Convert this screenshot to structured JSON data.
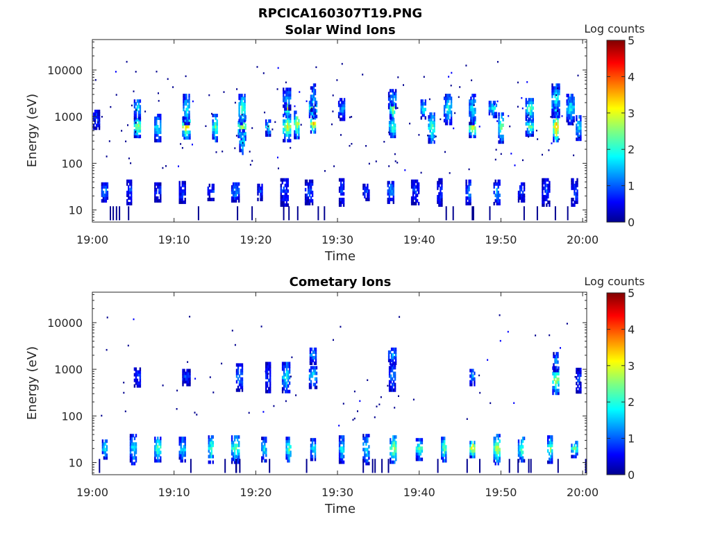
{
  "figure": {
    "title": "RPCICA160307T19.PNG"
  },
  "chart_data": [
    {
      "type": "heatmap",
      "title": "Solar Wind Ions",
      "xlabel": "Time",
      "ylabel": "Energy (eV)",
      "yscale": "log",
      "ylim": [
        5.5,
        45000
      ],
      "xlim": [
        "19:00",
        "20:00"
      ],
      "xticks": [
        "19:00",
        "19:10",
        "19:20",
        "19:30",
        "19:40",
        "19:50",
        "20:00"
      ],
      "yticks": [
        "10",
        "100",
        "1000",
        "10000"
      ],
      "colorbar": {
        "label": "Log counts",
        "min": 0,
        "max": 5,
        "ticks": [
          "0",
          "1",
          "2",
          "3",
          "4",
          "5"
        ],
        "colormap": "jet"
      },
      "bursts": [
        {
          "t": 0.5,
          "e": 900,
          "v": 1.0
        },
        {
          "t": 5.5,
          "e": 600,
          "v": 3.0
        },
        {
          "t": 5.5,
          "e": 1500,
          "v": 2.0
        },
        {
          "t": 8.0,
          "e": 600,
          "v": 2.0
        },
        {
          "t": 11.5,
          "e": 600,
          "v": 3.5
        },
        {
          "t": 11.5,
          "e": 1500,
          "v": 2.0
        },
        {
          "t": 15.0,
          "e": 600,
          "v": 2.5
        },
        {
          "t": 18.3,
          "e": 600,
          "v": 3.0
        },
        {
          "t": 18.3,
          "e": 1500,
          "v": 2.5
        },
        {
          "t": 18.3,
          "e": 300,
          "v": 2.0
        },
        {
          "t": 21.5,
          "e": 600,
          "v": 2.0
        },
        {
          "t": 23.8,
          "e": 600,
          "v": 3.0
        },
        {
          "t": 23.8,
          "e": 1500,
          "v": 3.0
        },
        {
          "t": 23.8,
          "e": 2500,
          "v": 1.5
        },
        {
          "t": 25.0,
          "e": 700,
          "v": 3.0
        },
        {
          "t": 27.0,
          "e": 700,
          "v": 3.5
        },
        {
          "t": 27.0,
          "e": 1500,
          "v": 3.0
        },
        {
          "t": 27.0,
          "e": 2500,
          "v": 1.5
        },
        {
          "t": 30.5,
          "e": 1500,
          "v": 1.5
        },
        {
          "t": 36.7,
          "e": 600,
          "v": 2.5
        },
        {
          "t": 36.7,
          "e": 1500,
          "v": 3.0
        },
        {
          "t": 36.7,
          "e": 2500,
          "v": 1.5
        },
        {
          "t": 40.5,
          "e": 1500,
          "v": 2.0
        },
        {
          "t": 41.5,
          "e": 600,
          "v": 2.5
        },
        {
          "t": 43.5,
          "e": 1500,
          "v": 2.0
        },
        {
          "t": 46.5,
          "e": 600,
          "v": 3.5
        },
        {
          "t": 46.5,
          "e": 1500,
          "v": 2.0
        },
        {
          "t": 49.0,
          "e": 1500,
          "v": 2.0
        },
        {
          "t": 50.0,
          "e": 600,
          "v": 2.5
        },
        {
          "t": 53.5,
          "e": 600,
          "v": 2.5
        },
        {
          "t": 53.5,
          "e": 1500,
          "v": 2.5
        },
        {
          "t": 56.7,
          "e": 600,
          "v": 4.0
        },
        {
          "t": 56.7,
          "e": 1500,
          "v": 2.5
        },
        {
          "t": 56.7,
          "e": 2500,
          "v": 2.0
        },
        {
          "t": 58.5,
          "e": 1500,
          "v": 2.0
        },
        {
          "t": 59.5,
          "e": 600,
          "v": 2.0
        },
        {
          "t": 1.5,
          "e": 25,
          "v": 1.5
        },
        {
          "t": 4.5,
          "e": 25,
          "v": 1.0
        },
        {
          "t": 8.0,
          "e": 25,
          "v": 1.0
        },
        {
          "t": 11.0,
          "e": 25,
          "v": 1.0
        },
        {
          "t": 14.5,
          "e": 25,
          "v": 1.0
        },
        {
          "t": 17.5,
          "e": 25,
          "v": 1.5
        },
        {
          "t": 20.5,
          "e": 25,
          "v": 1.0
        },
        {
          "t": 23.5,
          "e": 25,
          "v": 1.0
        },
        {
          "t": 26.5,
          "e": 25,
          "v": 1.0
        },
        {
          "t": 30.5,
          "e": 25,
          "v": 1.0
        },
        {
          "t": 33.5,
          "e": 25,
          "v": 1.0
        },
        {
          "t": 36.5,
          "e": 25,
          "v": 1.5
        },
        {
          "t": 39.5,
          "e": 25,
          "v": 1.0
        },
        {
          "t": 42.5,
          "e": 25,
          "v": 1.0
        },
        {
          "t": 46.0,
          "e": 25,
          "v": 1.5
        },
        {
          "t": 49.5,
          "e": 25,
          "v": 1.5
        },
        {
          "t": 52.5,
          "e": 25,
          "v": 1.0
        },
        {
          "t": 55.5,
          "e": 25,
          "v": 1.0
        },
        {
          "t": 59.0,
          "e": 25,
          "v": 1.0
        }
      ],
      "scatter_density": 0.6
    },
    {
      "type": "heatmap",
      "title": "Cometary Ions",
      "xlabel": "Time",
      "ylabel": "Energy (eV)",
      "yscale": "log",
      "ylim": [
        5.5,
        45000
      ],
      "xlim": [
        "19:00",
        "20:00"
      ],
      "xticks": [
        "19:00",
        "19:10",
        "19:20",
        "19:30",
        "19:40",
        "19:50",
        "20:00"
      ],
      "yticks": [
        "10",
        "100",
        "1000",
        "10000"
      ],
      "colorbar": {
        "label": "Log counts",
        "min": 0,
        "max": 5,
        "ticks": [
          "0",
          "1",
          "2",
          "3",
          "4",
          "5"
        ],
        "colormap": "jet"
      },
      "bursts": [
        {
          "t": 1.5,
          "e": 20,
          "v": 2.0
        },
        {
          "t": 5.0,
          "e": 20,
          "v": 2.0
        },
        {
          "t": 8.0,
          "e": 20,
          "v": 2.5
        },
        {
          "t": 11.0,
          "e": 20,
          "v": 2.0
        },
        {
          "t": 14.5,
          "e": 20,
          "v": 2.5
        },
        {
          "t": 17.5,
          "e": 20,
          "v": 2.5
        },
        {
          "t": 21.0,
          "e": 20,
          "v": 2.0
        },
        {
          "t": 24.0,
          "e": 20,
          "v": 2.5
        },
        {
          "t": 27.0,
          "e": 20,
          "v": 2.0
        },
        {
          "t": 30.5,
          "e": 20,
          "v": 2.0
        },
        {
          "t": 33.5,
          "e": 20,
          "v": 2.0
        },
        {
          "t": 36.8,
          "e": 20,
          "v": 3.0
        },
        {
          "t": 40.0,
          "e": 20,
          "v": 2.5
        },
        {
          "t": 43.0,
          "e": 20,
          "v": 2.5
        },
        {
          "t": 46.5,
          "e": 20,
          "v": 3.5
        },
        {
          "t": 49.5,
          "e": 20,
          "v": 3.0
        },
        {
          "t": 52.5,
          "e": 20,
          "v": 2.5
        },
        {
          "t": 56.0,
          "e": 20,
          "v": 2.5
        },
        {
          "t": 59.0,
          "e": 20,
          "v": 2.5
        },
        {
          "t": 5.5,
          "e": 700,
          "v": 1.0
        },
        {
          "t": 11.5,
          "e": 700,
          "v": 1.0
        },
        {
          "t": 18.0,
          "e": 700,
          "v": 1.5
        },
        {
          "t": 21.5,
          "e": 700,
          "v": 1.0
        },
        {
          "t": 23.7,
          "e": 700,
          "v": 2.0
        },
        {
          "t": 27.0,
          "e": 700,
          "v": 2.0
        },
        {
          "t": 36.7,
          "e": 700,
          "v": 1.5
        },
        {
          "t": 46.5,
          "e": 700,
          "v": 1.5
        },
        {
          "t": 56.7,
          "e": 600,
          "v": 3.0
        },
        {
          "t": 56.7,
          "e": 1500,
          "v": 1.5
        },
        {
          "t": 36.7,
          "e": 2000,
          "v": 1.5
        },
        {
          "t": 27.0,
          "e": 2000,
          "v": 1.5
        },
        {
          "t": 59.5,
          "e": 600,
          "v": 1.0
        }
      ],
      "scatter_density": 0.25
    }
  ]
}
